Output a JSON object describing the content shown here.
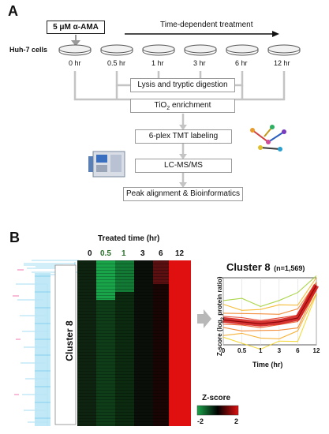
{
  "panel_a": {
    "letter": "A",
    "treatment_box": "5 μM α-AMA",
    "time_treatment_label": "Time-dependent treatment",
    "cell_label": "Huh-7 cells",
    "timepoints": [
      "0 hr",
      "0.5 hr",
      "1 hr",
      "3 hr",
      "6 hr",
      "12 hr"
    ],
    "steps": {
      "lysis": "Lysis and tryptic digestion",
      "tio2_main": "TiO",
      "tio2_sub": "2",
      "tio2_rest": " enrichment",
      "tmt": "6-plex TMT labeling",
      "lcms": "LC-MS/MS",
      "peak": "Peak alignment & Bioinformatics"
    }
  },
  "panel_b": {
    "letter": "B",
    "treated_time_title": "Treated time (hr)",
    "columns": [
      "0",
      "0.5",
      "1",
      "3",
      "6",
      "12"
    ],
    "column_colors": [
      "#111111",
      "#2a6f2a",
      "#2a6f2a",
      "#111111",
      "#111111",
      "#111111"
    ],
    "cluster_label": "Cluster 8",
    "chart_title": "Cluster 8",
    "chart_subtitle": "(n=1,569)",
    "colorbar_title": "Z-score",
    "colorbar_min": "-2",
    "colorbar_max": "2",
    "colors": {
      "green": "#1aa44a",
      "red": "#e01010",
      "dendrogram": "#4fb9e6"
    }
  },
  "chart_data": {
    "type": "line",
    "title": "Cluster 8",
    "subtitle": "(n=1,569)",
    "x": [
      0,
      0.5,
      1,
      3,
      6,
      12
    ],
    "x_tick_labels": [
      "0",
      "0.5",
      "1",
      "3",
      "6",
      "12"
    ],
    "xlabel": "Time (hr)",
    "ylabel_main": "Z-score (log",
    "ylabel_sub": "2",
    "ylabel_end": " protein ratio)",
    "series": [
      {
        "values": [
          -0.2,
          -0.3,
          -0.4,
          -0.3,
          -0.1,
          1.6
        ]
      }
    ],
    "grid": true
  }
}
